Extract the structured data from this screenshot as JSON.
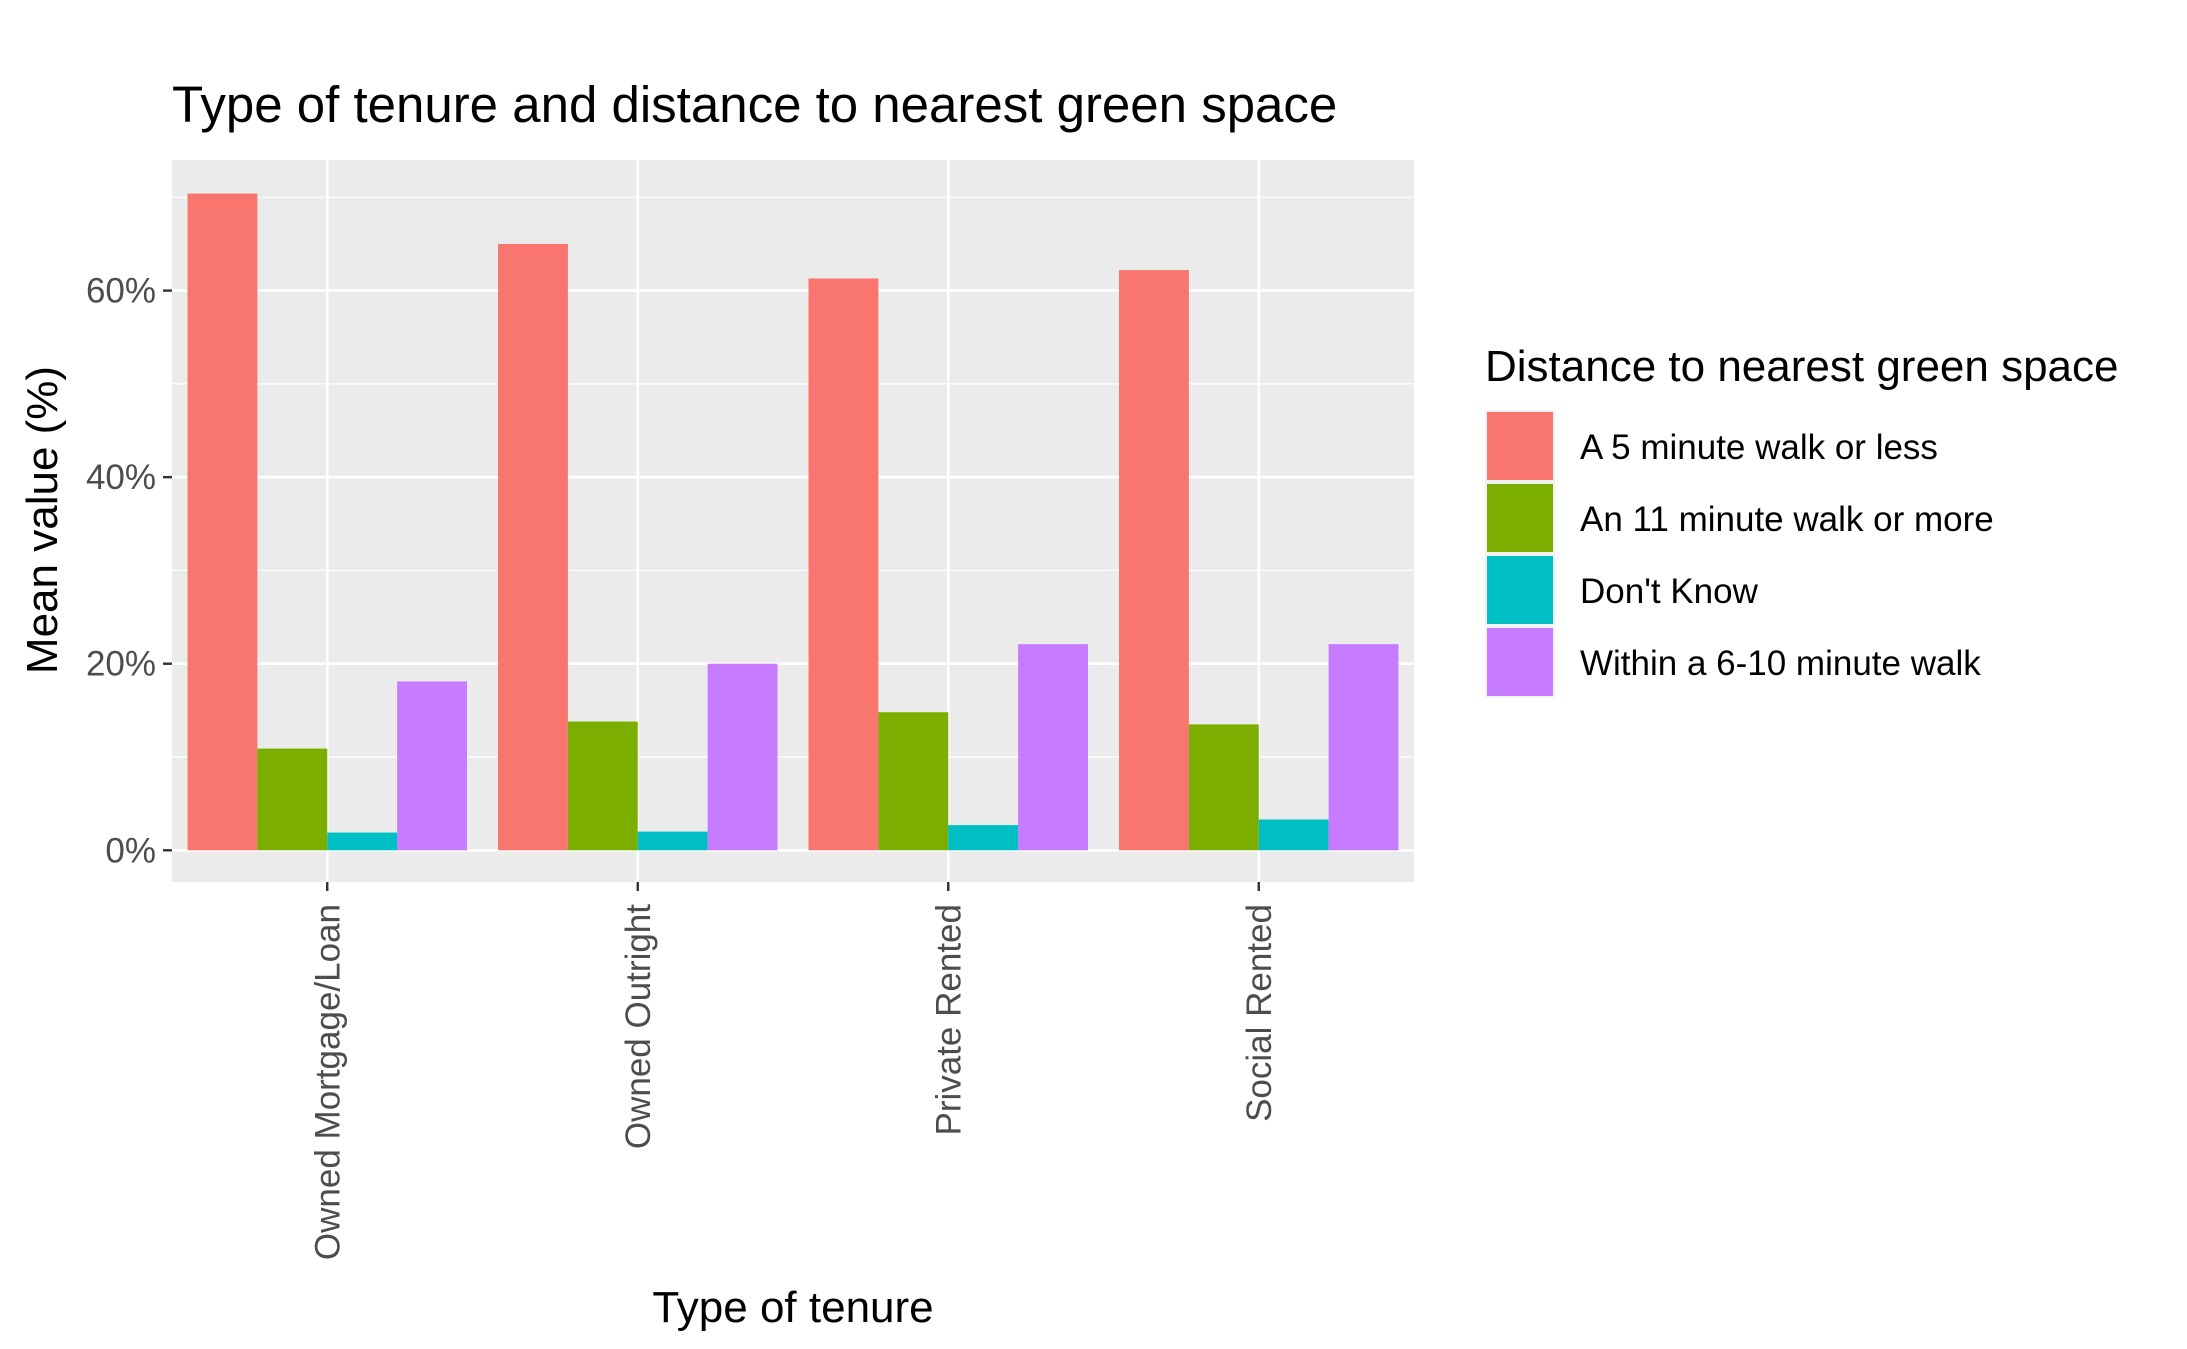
{
  "chart_data": {
    "type": "bar",
    "title": "Type of tenure and distance to nearest green space",
    "xlabel": "Type of tenure",
    "ylabel": "Mean value (%)",
    "categories": [
      "Owned Mortgage/Loan",
      "Owned Outright",
      "Private Rented",
      "Social Rented"
    ],
    "series": [
      {
        "name": "A 5 minute walk or less",
        "color": "#F8766D",
        "values": [
          70.4,
          65.0,
          61.3,
          62.2
        ]
      },
      {
        "name": "An 11 minute walk or more",
        "color": "#7CAE00",
        "values": [
          10.9,
          13.8,
          14.8,
          13.5
        ]
      },
      {
        "name": "Don't Know",
        "color": "#00BFC4",
        "values": [
          1.9,
          2.0,
          2.7,
          3.3
        ]
      },
      {
        "name": "Within a 6-10 minute walk",
        "color": "#C77CFF",
        "values": [
          18.1,
          20.0,
          22.1,
          22.1
        ]
      }
    ],
    "ylim": [
      -3.4,
      74.0
    ],
    "yticks": [
      0,
      20,
      40,
      60
    ],
    "ytick_labels": [
      "0%",
      "20%",
      "40%",
      "60%"
    ],
    "grid": true,
    "legend": {
      "title": "Distance to nearest green space",
      "position": "right"
    },
    "colors": {
      "panel_background": "#EBEBEB",
      "grid": "#FFFFFF",
      "tick_text": "#4D4D4D"
    }
  }
}
